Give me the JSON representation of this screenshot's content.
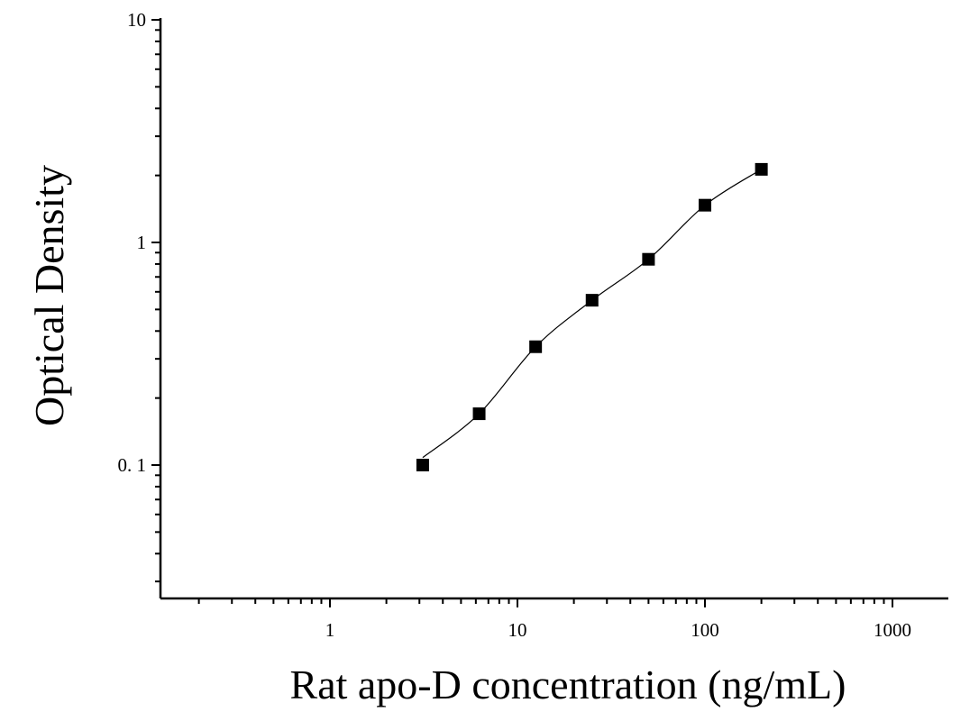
{
  "chart_data": {
    "type": "scatter",
    "xlabel": "Rat apo-D concentration (ng/mL)",
    "ylabel": "Optical Density",
    "x_scale": "log",
    "y_scale": "log",
    "xlim": [
      0.15,
      1200
    ],
    "ylim": [
      0.025,
      10
    ],
    "x_ticks": [
      1,
      10,
      100,
      1000
    ],
    "x_tick_labels": [
      "1",
      "10",
      "100",
      "1000"
    ],
    "y_ticks": [
      0.1,
      1,
      10
    ],
    "y_tick_labels": [
      "0. 1",
      "1",
      "10"
    ],
    "grid": false,
    "series": [
      {
        "marker": "square",
        "color": "#000000",
        "x": [
          3.125,
          6.25,
          12.5,
          25,
          50,
          100,
          200
        ],
        "y": [
          0.1,
          0.17,
          0.34,
          0.55,
          0.84,
          1.47,
          2.13
        ]
      }
    ],
    "fit_curve": {
      "color": "#000000",
      "x_range": [
        3.125,
        200
      ]
    }
  }
}
